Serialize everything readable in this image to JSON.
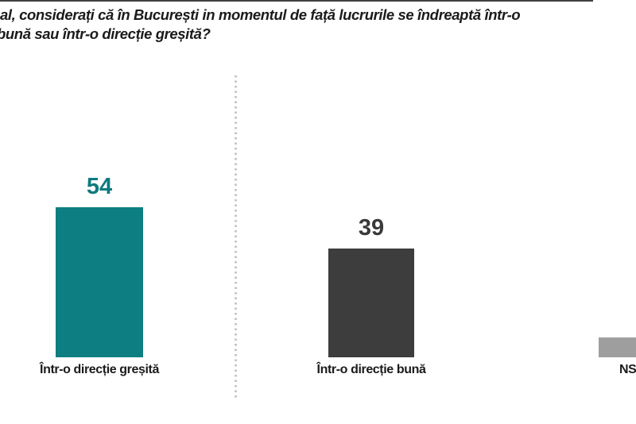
{
  "title": {
    "line1": "al, considerați că în București in momentul de față lucrurile se îndreaptă într-o",
    "line2": "bună sau într-o direcție greșită?"
  },
  "chart_data": {
    "type": "bar",
    "title_lines": [
      "al, considerați că în București in momentul de față lucrurile se îndreaptă într-o",
      "bună sau într-o direcție greșită?"
    ],
    "categories": [
      "Într-o direcție greșită",
      "Într-o direcție bună",
      "NS"
    ],
    "values": [
      54,
      39,
      7
    ],
    "value_labels": [
      "54",
      "39",
      ""
    ],
    "bar_colors": [
      "#0d7f82",
      "#3d3d3d",
      "#9e9e9e"
    ],
    "value_label_colors": [
      "#0e7a80",
      "#3a3a3a",
      "#9e9e9e"
    ],
    "label_color": "#1b1b1b",
    "ylim": [
      0,
      60
    ],
    "grid": false,
    "legend": false,
    "layout_hints": {
      "orientation": "vertical",
      "dotted_divider_after_first_bar": true,
      "title_cropped_at_left_edge": true,
      "third_bar_cropped_at_right_edge": true,
      "third_value_estimated_from_bar_height": true
    }
  }
}
